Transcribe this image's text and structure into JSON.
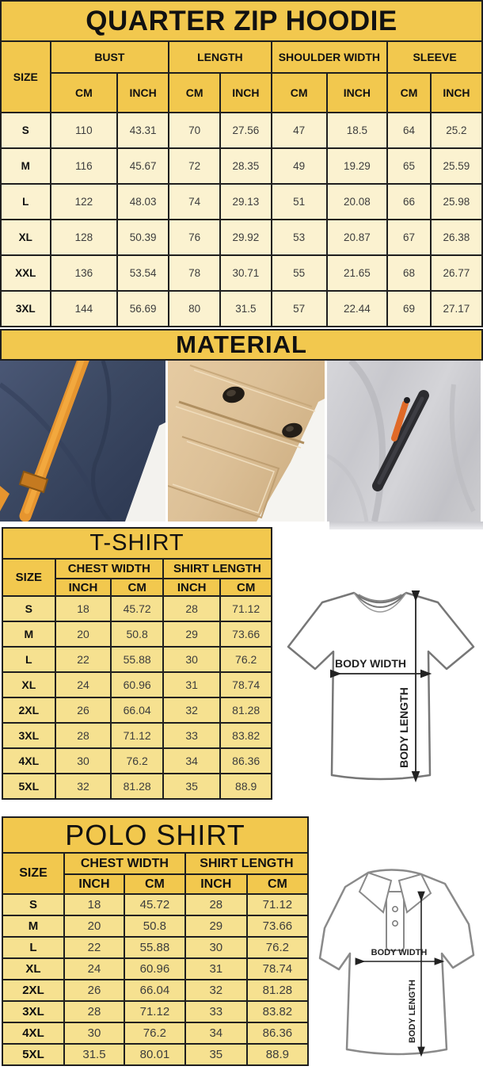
{
  "colors": {
    "header_gold": "#f2c84e",
    "hoodie_row_cream": "#fbf2d0",
    "shirt_row_yellow": "#f6e190",
    "table_border": "#1f1f1f",
    "navy_fabric": "#3c4963",
    "orange_accent": "#e6952f",
    "khaki_fabric": "#dcc097",
    "gray_fabric": "#c8c8cd"
  },
  "hoodie": {
    "title": "QUARTER ZIP HOODIE",
    "col_groups": [
      {
        "label": "SIZE"
      },
      {
        "label": "BUST"
      },
      {
        "label": "LENGTH"
      },
      {
        "label": "SHOULDER WIDTH"
      },
      {
        "label": "SLEEVE"
      }
    ],
    "subheaders": [
      "CM",
      "INCH",
      "CM",
      "INCH",
      "CM",
      "INCH",
      "CM",
      "INCH"
    ],
    "rows": [
      [
        "S",
        "110",
        "43.31",
        "70",
        "27.56",
        "47",
        "18.5",
        "64",
        "25.2"
      ],
      [
        "M",
        "116",
        "45.67",
        "72",
        "28.35",
        "49",
        "19.29",
        "65",
        "25.59"
      ],
      [
        "L",
        "122",
        "48.03",
        "74",
        "29.13",
        "51",
        "20.08",
        "66",
        "25.98"
      ],
      [
        "XL",
        "128",
        "50.39",
        "76",
        "29.92",
        "53",
        "20.87",
        "67",
        "26.38"
      ],
      [
        "XXL",
        "136",
        "53.54",
        "78",
        "30.71",
        "55",
        "21.65",
        "68",
        "26.77"
      ],
      [
        "3XL",
        "144",
        "56.69",
        "80",
        "31.5",
        "57",
        "22.44",
        "69",
        "27.17"
      ]
    ]
  },
  "material": {
    "title": "MATERIAL",
    "photos": [
      "navy-fleece-with-orange-drawcord",
      "khaki-flap-pocket-with-snaps",
      "gray-fleece-with-zipper-pocket"
    ]
  },
  "tshirt": {
    "title": "T-SHIRT",
    "col_groups": [
      {
        "label": "SIZE"
      },
      {
        "label": "CHEST WIDTH"
      },
      {
        "label": "SHIRT LENGTH"
      }
    ],
    "subheaders": [
      "INCH",
      "CM",
      "INCH",
      "CM"
    ],
    "rows": [
      [
        "S",
        "18",
        "45.72",
        "28",
        "71.12"
      ],
      [
        "M",
        "20",
        "50.8",
        "29",
        "73.66"
      ],
      [
        "L",
        "22",
        "55.88",
        "30",
        "76.2"
      ],
      [
        "XL",
        "24",
        "60.96",
        "31",
        "78.74"
      ],
      [
        "2XL",
        "26",
        "66.04",
        "32",
        "81.28"
      ],
      [
        "3XL",
        "28",
        "71.12",
        "33",
        "83.82"
      ],
      [
        "4XL",
        "30",
        "76.2",
        "34",
        "86.36"
      ],
      [
        "5XL",
        "32",
        "81.28",
        "35",
        "88.9"
      ]
    ],
    "diagram": {
      "width_label": "BODY WIDTH",
      "length_label": "BODY LENGTH"
    }
  },
  "polo": {
    "title": "POLO SHIRT",
    "col_groups": [
      {
        "label": "SIZE"
      },
      {
        "label": "CHEST WIDTH"
      },
      {
        "label": "SHIRT LENGTH"
      }
    ],
    "subheaders": [
      "INCH",
      "CM",
      "INCH",
      "CM"
    ],
    "rows": [
      [
        "S",
        "18",
        "45.72",
        "28",
        "71.12"
      ],
      [
        "M",
        "20",
        "50.8",
        "29",
        "73.66"
      ],
      [
        "L",
        "22",
        "55.88",
        "30",
        "76.2"
      ],
      [
        "XL",
        "24",
        "60.96",
        "31",
        "78.74"
      ],
      [
        "2XL",
        "26",
        "66.04",
        "32",
        "81.28"
      ],
      [
        "3XL",
        "28",
        "71.12",
        "33",
        "83.82"
      ],
      [
        "4XL",
        "30",
        "76.2",
        "34",
        "86.36"
      ],
      [
        "5XL",
        "31.5",
        "80.01",
        "35",
        "88.9"
      ]
    ],
    "diagram": {
      "width_label": "BODY WIDTH",
      "length_label": "BODY LENGTH"
    }
  }
}
